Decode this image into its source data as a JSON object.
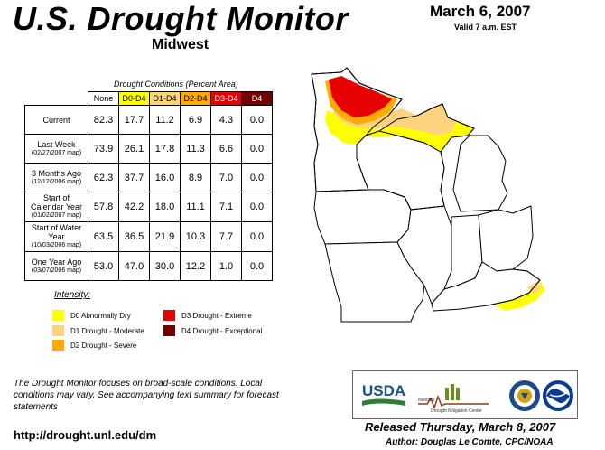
{
  "header": {
    "title": "U.S. Drought Monitor",
    "region": "Midwest",
    "date": "March 6, 2007",
    "valid": "Valid 7 a.m. EST"
  },
  "table": {
    "caption": "Drought Conditions (Percent Area)",
    "columns": [
      "None",
      "D0-D4",
      "D1-D4",
      "D2-D4",
      "D3-D4",
      "D4"
    ],
    "rows": [
      {
        "label": "Current",
        "sub": "",
        "values": [
          "82.3",
          "17.7",
          "11.2",
          "6.9",
          "4.3",
          "0.0"
        ]
      },
      {
        "label": "Last Week",
        "sub": "(02/27/2007 map)",
        "values": [
          "73.9",
          "26.1",
          "17.8",
          "11.3",
          "6.6",
          "0.0"
        ]
      },
      {
        "label": "3 Months Ago",
        "sub": "(12/12/2006 map)",
        "values": [
          "62.3",
          "37.7",
          "16.0",
          "8.9",
          "7.0",
          "0.0"
        ]
      },
      {
        "label": "Start of Calendar Year",
        "sub": "(01/02/2007 map)",
        "values": [
          "57.8",
          "42.2",
          "18.0",
          "11.1",
          "7.1",
          "0.0"
        ]
      },
      {
        "label": "Start of Water Year",
        "sub": "(10/03/2006 map)",
        "values": [
          "63.5",
          "36.5",
          "21.9",
          "10.3",
          "7.7",
          "0.0"
        ]
      },
      {
        "label": "One Year Ago",
        "sub": "(03/07/2006 map)",
        "values": [
          "53.0",
          "47.0",
          "30.0",
          "12.2",
          "1.0",
          "0.0"
        ]
      }
    ]
  },
  "legend": {
    "title": "Intensity:",
    "items": [
      {
        "label": "D0 Abnormally Dry",
        "color": "#ffff00"
      },
      {
        "label": "D1 Drought - Moderate",
        "color": "#fcd37f"
      },
      {
        "label": "D2 Drought - Severe",
        "color": "#ffaa00"
      },
      {
        "label": "D3 Drought - Extreme",
        "color": "#e60000"
      },
      {
        "label": "D4 Drought - Exceptional",
        "color": "#730000"
      }
    ]
  },
  "footer": {
    "note": "The Drought Monitor focuses on broad-scale conditions. Local conditions may vary. See accompanying text summary for forecast statements",
    "url": "http://drought.unl.edu/dm",
    "released": "Released Thursday, March 8, 2007",
    "author": "Author: Douglas Le Comte, CPC/NOAA"
  },
  "logos": {
    "usda": "USDA",
    "ndmc_small": "National",
    "ndmc": "Drought Mitigation Center",
    "doc_icon": "commerce-seal-icon",
    "noaa_icon": "noaa-logo-icon"
  }
}
